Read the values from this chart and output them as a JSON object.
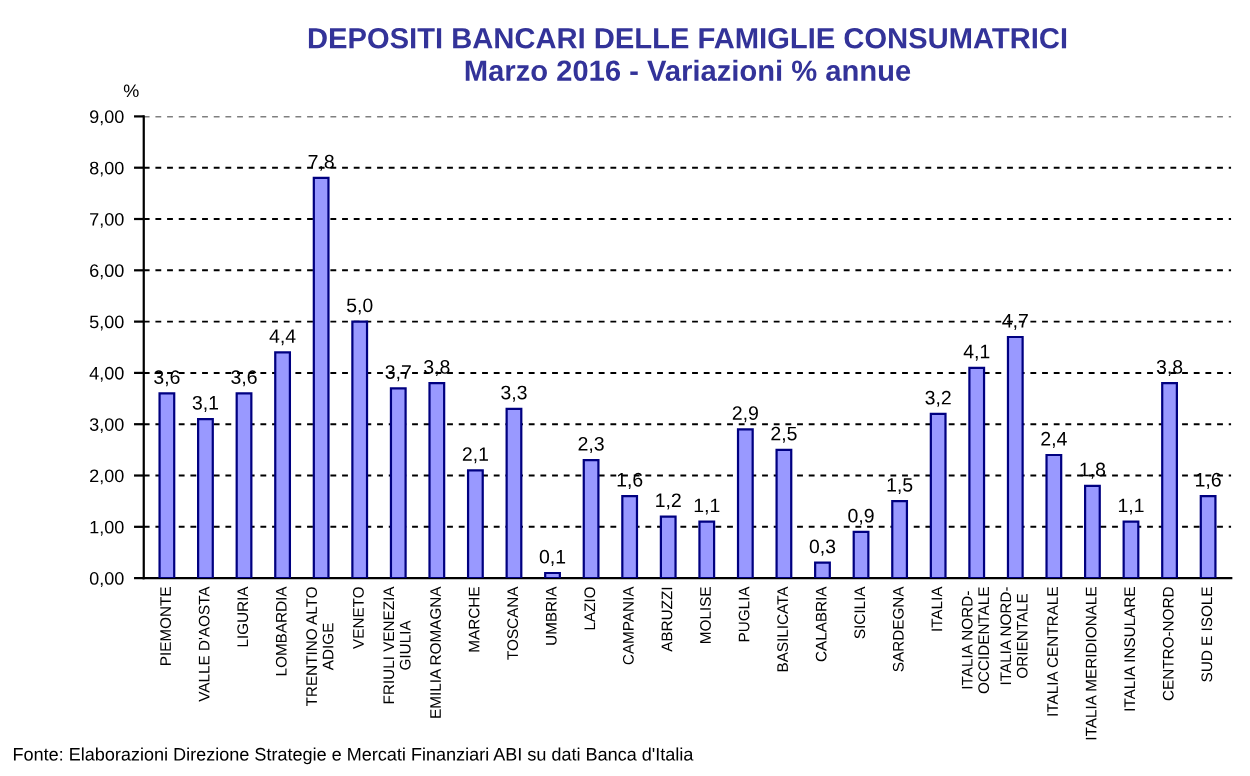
{
  "chart_data": {
    "type": "bar",
    "title": "DEPOSITI BANCARI DELLE FAMIGLIE CONSUMATRICI\nMarzo 2016 - Variazioni % annue",
    "ylabel": "%",
    "categories": [
      "PIEMONTE",
      "VALLE D'AOSTA",
      "LIGURIA",
      "LOMBARDIA",
      "TRENTINO ALTO\nADIGE",
      "VENETO",
      "FRIULI VENEZIA\nGIULIA",
      "EMILIA ROMAGNA",
      "MARCHE",
      "TOSCANA",
      "UMBRIA",
      "LAZIO",
      "CAMPANIA",
      "ABRUZZI",
      "MOLISE",
      "PUGLIA",
      "BASILICATA",
      "CALABRIA",
      "SICILIA",
      "SARDEGNA",
      "ITALIA",
      "ITALIA NORD-\nOCCIDENTALE",
      "ITALIA NORD-\nORIENTALE",
      "ITALIA CENTRALE",
      "ITALIA MERIDIONALE",
      "ITALIA INSULARE",
      "CENTRO-NORD",
      "SUD E ISOLE"
    ],
    "values": [
      3.6,
      3.1,
      3.6,
      4.4,
      7.8,
      5.0,
      3.7,
      3.8,
      2.1,
      3.3,
      0.1,
      2.3,
      1.6,
      1.2,
      1.1,
      2.9,
      2.5,
      0.3,
      0.9,
      1.5,
      3.2,
      4.1,
      4.7,
      2.4,
      1.8,
      1.1,
      3.8,
      1.6
    ],
    "value_labels": [
      "3,6",
      "3,1",
      "3,6",
      "4,4",
      "7,8",
      "5,0",
      "3,7",
      "3,8",
      "2,1",
      "3,3",
      "0,1",
      "2,3",
      "1,6",
      "1,2",
      "1,1",
      "2,9",
      "2,5",
      "0,3",
      "0,9",
      "1,5",
      "3,2",
      "4,1",
      "4,7",
      "2,4",
      "1,8",
      "1,1",
      "3,8",
      "1,6"
    ],
    "color": "#9999ff",
    "ylim": [
      0,
      9
    ],
    "yticks": [
      {
        "value": 0,
        "label": "0,00"
      },
      {
        "value": 1,
        "label": "1,00"
      },
      {
        "value": 2,
        "label": "2,00"
      },
      {
        "value": 3,
        "label": "3,00"
      },
      {
        "value": 4,
        "label": "4,00"
      },
      {
        "value": 5,
        "label": "5,00"
      },
      {
        "value": 6,
        "label": "6,00"
      },
      {
        "value": 7,
        "label": "7,00"
      },
      {
        "value": 8,
        "label": "8,00"
      },
      {
        "value": 9,
        "label": "9,00"
      }
    ],
    "grid": "y",
    "legend": false,
    "annotations": [
      "Fonte: Elaborazioni Direzione Strategie e Mercati Finanziari ABI su dati Banca d'Italia"
    ]
  }
}
